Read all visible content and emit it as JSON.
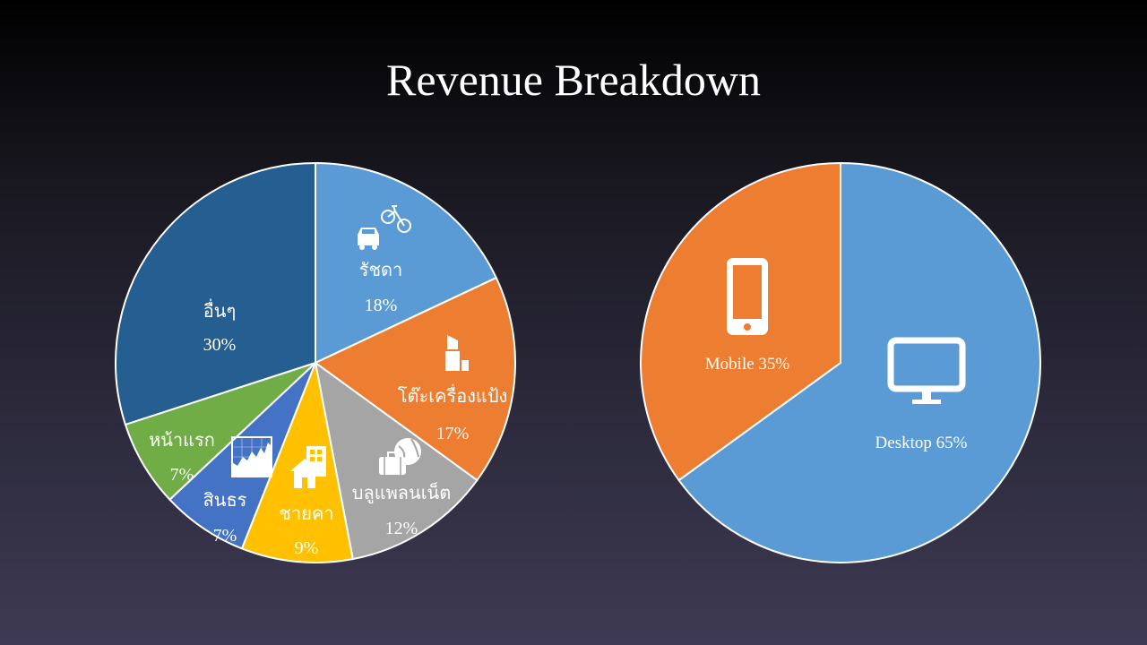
{
  "slide": {
    "title": "Revenue Breakdown"
  },
  "colors": {
    "stroke": "#ffffff",
    "label": "#ffffff"
  },
  "chart_data": [
    {
      "type": "pie",
      "title": "",
      "categories": [
        "รัชดา",
        "โต๊ะเครื่องแป้ง",
        "บลูแพลนเน็ต",
        "ชายคา",
        "สินธร",
        "หน้าแรก",
        "อื่นๆ"
      ],
      "values": [
        18,
        17,
        12,
        9,
        7,
        7,
        30
      ],
      "value_labels": [
        "18%",
        "17%",
        "12%",
        "9%",
        "7%",
        "7%",
        "30%"
      ],
      "colors": [
        "#5b9bd5",
        "#ed7d31",
        "#a5a5a5",
        "#ffc000",
        "#4472c4",
        "#70ad47",
        "#255e91"
      ],
      "icons": [
        "car-bicycle-icon",
        "lipstick-icon",
        "travel-globe-icon",
        "house-building-icon",
        "chart-icon",
        "",
        ""
      ],
      "legend": "none"
    },
    {
      "type": "pie",
      "title": "",
      "categories": [
        "Desktop",
        "Mobile"
      ],
      "values": [
        65,
        35
      ],
      "value_labels": [
        "Desktop 65%",
        "Mobile 35%"
      ],
      "colors": [
        "#5b9bd5",
        "#ed7d31"
      ],
      "icons": [
        "monitor-icon",
        "smartphone-icon"
      ],
      "legend": "none"
    }
  ]
}
